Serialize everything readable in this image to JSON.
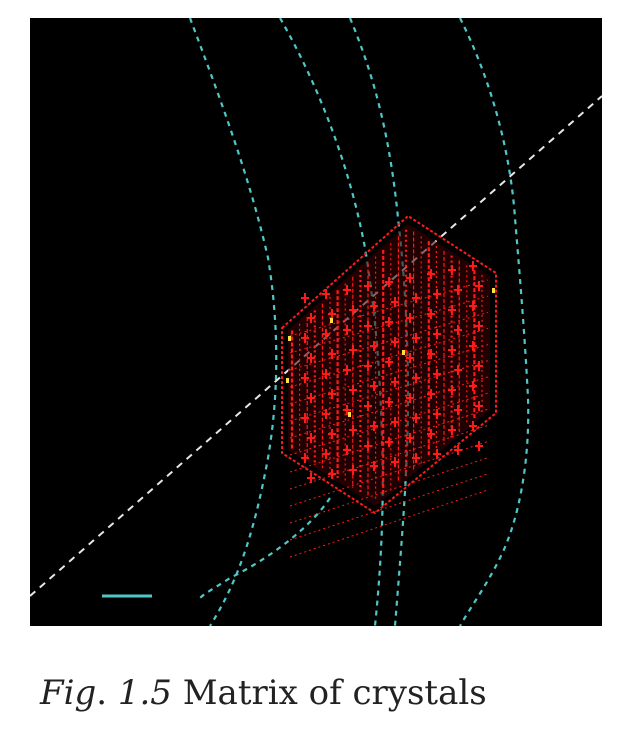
{
  "figure": {
    "caption_label": "Fig",
    "caption_sep": ".",
    "caption_number": " 1.5",
    "caption_text": " Matrix of crystals"
  },
  "colors": {
    "background": "#000000",
    "track": "#4fc7c7",
    "beam": "#e6e6e6",
    "crystal": "#ff1a1a",
    "crystal_highlight": "#ffe040",
    "scale_bar": "#4fc7c7"
  }
}
